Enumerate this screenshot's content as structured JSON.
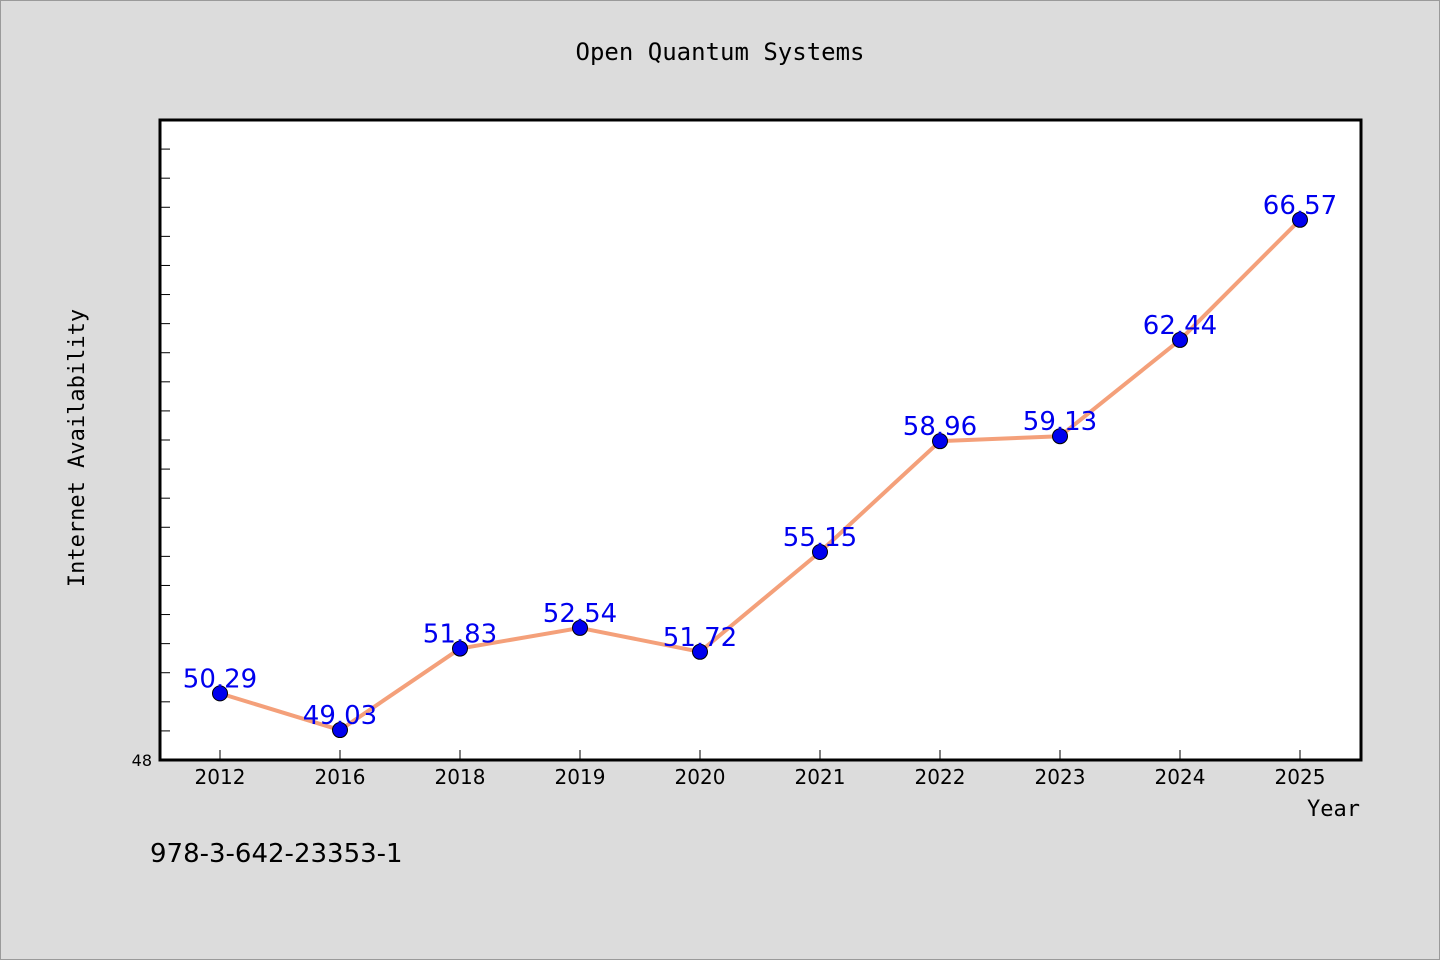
{
  "chart_data": {
    "type": "line",
    "title": "Open Quantum Systems",
    "xlabel": "Year",
    "ylabel": "Internet Availability",
    "categories": [
      "2012",
      "2016",
      "2018",
      "2019",
      "2020",
      "2021",
      "2022",
      "2023",
      "2024",
      "2025"
    ],
    "series": [
      {
        "values": [
          50.29,
          49.03,
          51.83,
          52.54,
          51.72,
          55.15,
          58.96,
          59.13,
          62.44,
          66.57
        ],
        "labels": [
          "50.29",
          "49.03",
          "51.83",
          "52.54",
          "51.72",
          "55.15",
          "58.96",
          "59.13",
          "62.44",
          "66.57"
        ],
        "line_color": "#f4a07a",
        "marker_color": "#0000ee"
      }
    ],
    "ylim": [
      48,
      70
    ],
    "y_tick_labels": [
      "48"
    ],
    "grid": false,
    "legend": "none"
  },
  "footer_text": "978-3-642-23353-1",
  "colors": {
    "background": "#dcdcdc",
    "plot_background": "#ffffff",
    "label_color": "#0000ee"
  }
}
